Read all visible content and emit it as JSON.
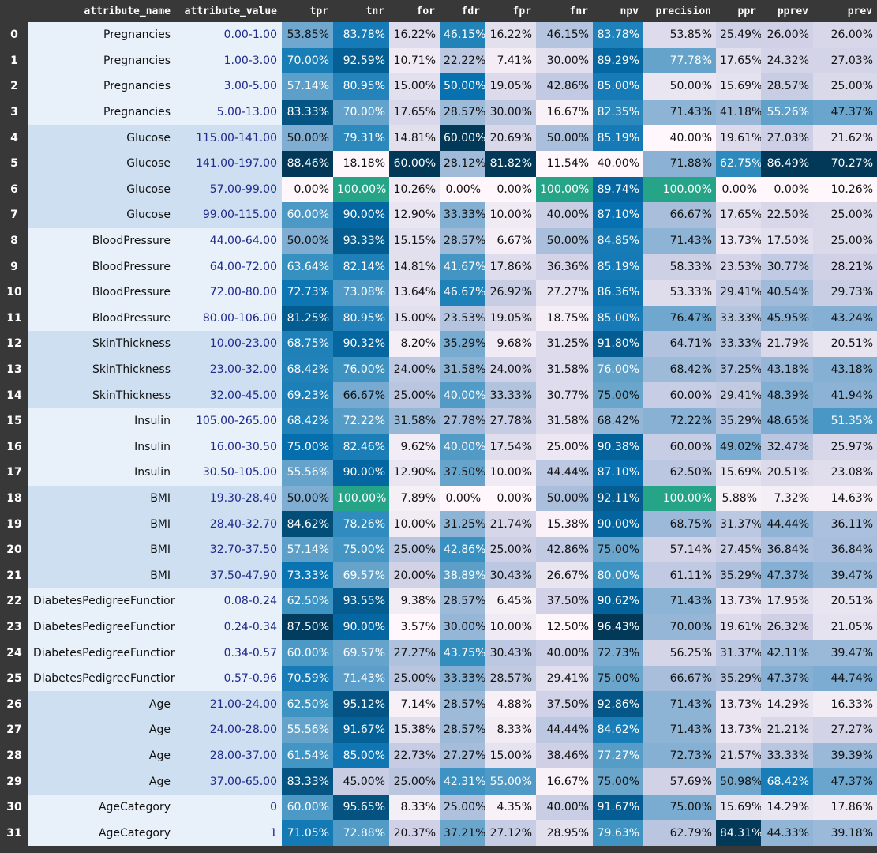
{
  "columns": [
    "attribute_name",
    "attribute_value",
    "tpr",
    "tnr",
    "for",
    "fdr",
    "fpr",
    "fnr",
    "npv",
    "precision",
    "ppr",
    "pprev",
    "prev"
  ],
  "metric_columns": [
    "tpr",
    "tnr",
    "for",
    "fdr",
    "fpr",
    "fnr",
    "npv",
    "precision",
    "ppr",
    "pprev",
    "prev"
  ],
  "colors": {
    "page_background": "#383838",
    "header_text": "#ffffff",
    "index_text": "#ffffff",
    "heatmap_low": "#fff7fb",
    "heatmap_high": "#023858",
    "max_highlight": "#26a487",
    "group_shades": [
      "#e8f1fa",
      "#cddff0",
      "#e8f1fa",
      "#cddff0",
      "#e8f1fa",
      "#cddff0",
      "#e8f1fa",
      "#cddff0",
      "#e8f1fa"
    ],
    "attribute_value_text": "#1f2a8a"
  },
  "rows": [
    {
      "index": "0",
      "attribute_name": "Pregnancies",
      "attribute_value": "0.00-1.00",
      "tpr": "53.85%",
      "tnr": "83.78%",
      "for": "16.22%",
      "fdr": "46.15%",
      "fpr": "16.22%",
      "fnr": "46.15%",
      "npv": "83.78%",
      "precision": "53.85%",
      "ppr": "25.49%",
      "pprev": "26.00%",
      "prev": "26.00%"
    },
    {
      "index": "1",
      "attribute_name": "Pregnancies",
      "attribute_value": "1.00-3.00",
      "tpr": "70.00%",
      "tnr": "92.59%",
      "for": "10.71%",
      "fdr": "22.22%",
      "fpr": "7.41%",
      "fnr": "30.00%",
      "npv": "89.29%",
      "precision": "77.78%",
      "ppr": "17.65%",
      "pprev": "24.32%",
      "prev": "27.03%"
    },
    {
      "index": "2",
      "attribute_name": "Pregnancies",
      "attribute_value": "3.00-5.00",
      "tpr": "57.14%",
      "tnr": "80.95%",
      "for": "15.00%",
      "fdr": "50.00%",
      "fpr": "19.05%",
      "fnr": "42.86%",
      "npv": "85.00%",
      "precision": "50.00%",
      "ppr": "15.69%",
      "pprev": "28.57%",
      "prev": "25.00%"
    },
    {
      "index": "3",
      "attribute_name": "Pregnancies",
      "attribute_value": "5.00-13.00",
      "tpr": "83.33%",
      "tnr": "70.00%",
      "for": "17.65%",
      "fdr": "28.57%",
      "fpr": "30.00%",
      "fnr": "16.67%",
      "npv": "82.35%",
      "precision": "71.43%",
      "ppr": "41.18%",
      "pprev": "55.26%",
      "prev": "47.37%"
    },
    {
      "index": "4",
      "attribute_name": "Glucose",
      "attribute_value": "115.00-141.00",
      "tpr": "50.00%",
      "tnr": "79.31%",
      "for": "14.81%",
      "fdr": "60.00%",
      "fpr": "20.69%",
      "fnr": "50.00%",
      "npv": "85.19%",
      "precision": "40.00%",
      "ppr": "19.61%",
      "pprev": "27.03%",
      "prev": "21.62%"
    },
    {
      "index": "5",
      "attribute_name": "Glucose",
      "attribute_value": "141.00-197.00",
      "tpr": "88.46%",
      "tnr": "18.18%",
      "for": "60.00%",
      "fdr": "28.12%",
      "fpr": "81.82%",
      "fnr": "11.54%",
      "npv": "40.00%",
      "precision": "71.88%",
      "ppr": "62.75%",
      "pprev": "86.49%",
      "prev": "70.27%"
    },
    {
      "index": "6",
      "attribute_name": "Glucose",
      "attribute_value": "57.00-99.00",
      "tpr": "0.00%",
      "tnr": "100.00%",
      "for": "10.26%",
      "fdr": "0.00%",
      "fpr": "0.00%",
      "fnr": "100.00%",
      "npv": "89.74%",
      "precision": "100.00%",
      "ppr": "0.00%",
      "pprev": "0.00%",
      "prev": "10.26%"
    },
    {
      "index": "7",
      "attribute_name": "Glucose",
      "attribute_value": "99.00-115.00",
      "tpr": "60.00%",
      "tnr": "90.00%",
      "for": "12.90%",
      "fdr": "33.33%",
      "fpr": "10.00%",
      "fnr": "40.00%",
      "npv": "87.10%",
      "precision": "66.67%",
      "ppr": "17.65%",
      "pprev": "22.50%",
      "prev": "25.00%"
    },
    {
      "index": "8",
      "attribute_name": "BloodPressure",
      "attribute_value": "44.00-64.00",
      "tpr": "50.00%",
      "tnr": "93.33%",
      "for": "15.15%",
      "fdr": "28.57%",
      "fpr": "6.67%",
      "fnr": "50.00%",
      "npv": "84.85%",
      "precision": "71.43%",
      "ppr": "13.73%",
      "pprev": "17.50%",
      "prev": "25.00%"
    },
    {
      "index": "9",
      "attribute_name": "BloodPressure",
      "attribute_value": "64.00-72.00",
      "tpr": "63.64%",
      "tnr": "82.14%",
      "for": "14.81%",
      "fdr": "41.67%",
      "fpr": "17.86%",
      "fnr": "36.36%",
      "npv": "85.19%",
      "precision": "58.33%",
      "ppr": "23.53%",
      "pprev": "30.77%",
      "prev": "28.21%"
    },
    {
      "index": "10",
      "attribute_name": "BloodPressure",
      "attribute_value": "72.00-80.00",
      "tpr": "72.73%",
      "tnr": "73.08%",
      "for": "13.64%",
      "fdr": "46.67%",
      "fpr": "26.92%",
      "fnr": "27.27%",
      "npv": "86.36%",
      "precision": "53.33%",
      "ppr": "29.41%",
      "pprev": "40.54%",
      "prev": "29.73%"
    },
    {
      "index": "11",
      "attribute_name": "BloodPressure",
      "attribute_value": "80.00-106.00",
      "tpr": "81.25%",
      "tnr": "80.95%",
      "for": "15.00%",
      "fdr": "23.53%",
      "fpr": "19.05%",
      "fnr": "18.75%",
      "npv": "85.00%",
      "precision": "76.47%",
      "ppr": "33.33%",
      "pprev": "45.95%",
      "prev": "43.24%"
    },
    {
      "index": "12",
      "attribute_name": "SkinThickness",
      "attribute_value": "10.00-23.00",
      "tpr": "68.75%",
      "tnr": "90.32%",
      "for": "8.20%",
      "fdr": "35.29%",
      "fpr": "9.68%",
      "fnr": "31.25%",
      "npv": "91.80%",
      "precision": "64.71%",
      "ppr": "33.33%",
      "pprev": "21.79%",
      "prev": "20.51%"
    },
    {
      "index": "13",
      "attribute_name": "SkinThickness",
      "attribute_value": "23.00-32.00",
      "tpr": "68.42%",
      "tnr": "76.00%",
      "for": "24.00%",
      "fdr": "31.58%",
      "fpr": "24.00%",
      "fnr": "31.58%",
      "npv": "76.00%",
      "precision": "68.42%",
      "ppr": "37.25%",
      "pprev": "43.18%",
      "prev": "43.18%"
    },
    {
      "index": "14",
      "attribute_name": "SkinThickness",
      "attribute_value": "32.00-45.00",
      "tpr": "69.23%",
      "tnr": "66.67%",
      "for": "25.00%",
      "fdr": "40.00%",
      "fpr": "33.33%",
      "fnr": "30.77%",
      "npv": "75.00%",
      "precision": "60.00%",
      "ppr": "29.41%",
      "pprev": "48.39%",
      "prev": "41.94%"
    },
    {
      "index": "15",
      "attribute_name": "Insulin",
      "attribute_value": "105.00-265.00",
      "tpr": "68.42%",
      "tnr": "72.22%",
      "for": "31.58%",
      "fdr": "27.78%",
      "fpr": "27.78%",
      "fnr": "31.58%",
      "npv": "68.42%",
      "precision": "72.22%",
      "ppr": "35.29%",
      "pprev": "48.65%",
      "prev": "51.35%"
    },
    {
      "index": "16",
      "attribute_name": "Insulin",
      "attribute_value": "16.00-30.50",
      "tpr": "75.00%",
      "tnr": "82.46%",
      "for": "9.62%",
      "fdr": "40.00%",
      "fpr": "17.54%",
      "fnr": "25.00%",
      "npv": "90.38%",
      "precision": "60.00%",
      "ppr": "49.02%",
      "pprev": "32.47%",
      "prev": "25.97%"
    },
    {
      "index": "17",
      "attribute_name": "Insulin",
      "attribute_value": "30.50-105.00",
      "tpr": "55.56%",
      "tnr": "90.00%",
      "for": "12.90%",
      "fdr": "37.50%",
      "fpr": "10.00%",
      "fnr": "44.44%",
      "npv": "87.10%",
      "precision": "62.50%",
      "ppr": "15.69%",
      "pprev": "20.51%",
      "prev": "23.08%"
    },
    {
      "index": "18",
      "attribute_name": "BMI",
      "attribute_value": "19.30-28.40",
      "tpr": "50.00%",
      "tnr": "100.00%",
      "for": "7.89%",
      "fdr": "0.00%",
      "fpr": "0.00%",
      "fnr": "50.00%",
      "npv": "92.11%",
      "precision": "100.00%",
      "ppr": "5.88%",
      "pprev": "7.32%",
      "prev": "14.63%"
    },
    {
      "index": "19",
      "attribute_name": "BMI",
      "attribute_value": "28.40-32.70",
      "tpr": "84.62%",
      "tnr": "78.26%",
      "for": "10.00%",
      "fdr": "31.25%",
      "fpr": "21.74%",
      "fnr": "15.38%",
      "npv": "90.00%",
      "precision": "68.75%",
      "ppr": "31.37%",
      "pprev": "44.44%",
      "prev": "36.11%"
    },
    {
      "index": "20",
      "attribute_name": "BMI",
      "attribute_value": "32.70-37.50",
      "tpr": "57.14%",
      "tnr": "75.00%",
      "for": "25.00%",
      "fdr": "42.86%",
      "fpr": "25.00%",
      "fnr": "42.86%",
      "npv": "75.00%",
      "precision": "57.14%",
      "ppr": "27.45%",
      "pprev": "36.84%",
      "prev": "36.84%"
    },
    {
      "index": "21",
      "attribute_name": "BMI",
      "attribute_value": "37.50-47.90",
      "tpr": "73.33%",
      "tnr": "69.57%",
      "for": "20.00%",
      "fdr": "38.89%",
      "fpr": "30.43%",
      "fnr": "26.67%",
      "npv": "80.00%",
      "precision": "61.11%",
      "ppr": "35.29%",
      "pprev": "47.37%",
      "prev": "39.47%"
    },
    {
      "index": "22",
      "attribute_name": "DiabetesPedigreeFunction",
      "attribute_value": "0.08-0.24",
      "tpr": "62.50%",
      "tnr": "93.55%",
      "for": "9.38%",
      "fdr": "28.57%",
      "fpr": "6.45%",
      "fnr": "37.50%",
      "npv": "90.62%",
      "precision": "71.43%",
      "ppr": "13.73%",
      "pprev": "17.95%",
      "prev": "20.51%"
    },
    {
      "index": "23",
      "attribute_name": "DiabetesPedigreeFunction",
      "attribute_value": "0.24-0.34",
      "tpr": "87.50%",
      "tnr": "90.00%",
      "for": "3.57%",
      "fdr": "30.00%",
      "fpr": "10.00%",
      "fnr": "12.50%",
      "npv": "96.43%",
      "precision": "70.00%",
      "ppr": "19.61%",
      "pprev": "26.32%",
      "prev": "21.05%"
    },
    {
      "index": "24",
      "attribute_name": "DiabetesPedigreeFunction",
      "attribute_value": "0.34-0.57",
      "tpr": "60.00%",
      "tnr": "69.57%",
      "for": "27.27%",
      "fdr": "43.75%",
      "fpr": "30.43%",
      "fnr": "40.00%",
      "npv": "72.73%",
      "precision": "56.25%",
      "ppr": "31.37%",
      "pprev": "42.11%",
      "prev": "39.47%"
    },
    {
      "index": "25",
      "attribute_name": "DiabetesPedigreeFunction",
      "attribute_value": "0.57-0.96",
      "tpr": "70.59%",
      "tnr": "71.43%",
      "for": "25.00%",
      "fdr": "33.33%",
      "fpr": "28.57%",
      "fnr": "29.41%",
      "npv": "75.00%",
      "precision": "66.67%",
      "ppr": "35.29%",
      "pprev": "47.37%",
      "prev": "44.74%"
    },
    {
      "index": "26",
      "attribute_name": "Age",
      "attribute_value": "21.00-24.00",
      "tpr": "62.50%",
      "tnr": "95.12%",
      "for": "7.14%",
      "fdr": "28.57%",
      "fpr": "4.88%",
      "fnr": "37.50%",
      "npv": "92.86%",
      "precision": "71.43%",
      "ppr": "13.73%",
      "pprev": "14.29%",
      "prev": "16.33%"
    },
    {
      "index": "27",
      "attribute_name": "Age",
      "attribute_value": "24.00-28.00",
      "tpr": "55.56%",
      "tnr": "91.67%",
      "for": "15.38%",
      "fdr": "28.57%",
      "fpr": "8.33%",
      "fnr": "44.44%",
      "npv": "84.62%",
      "precision": "71.43%",
      "ppr": "13.73%",
      "pprev": "21.21%",
      "prev": "27.27%"
    },
    {
      "index": "28",
      "attribute_name": "Age",
      "attribute_value": "28.00-37.00",
      "tpr": "61.54%",
      "tnr": "85.00%",
      "for": "22.73%",
      "fdr": "27.27%",
      "fpr": "15.00%",
      "fnr": "38.46%",
      "npv": "77.27%",
      "precision": "72.73%",
      "ppr": "21.57%",
      "pprev": "33.33%",
      "prev": "39.39%"
    },
    {
      "index": "29",
      "attribute_name": "Age",
      "attribute_value": "37.00-65.00",
      "tpr": "83.33%",
      "tnr": "45.00%",
      "for": "25.00%",
      "fdr": "42.31%",
      "fpr": "55.00%",
      "fnr": "16.67%",
      "npv": "75.00%",
      "precision": "57.69%",
      "ppr": "50.98%",
      "pprev": "68.42%",
      "prev": "47.37%"
    },
    {
      "index": "30",
      "attribute_name": "AgeCategory",
      "attribute_value": "0",
      "tpr": "60.00%",
      "tnr": "95.65%",
      "for": "8.33%",
      "fdr": "25.00%",
      "fpr": "4.35%",
      "fnr": "40.00%",
      "npv": "91.67%",
      "precision": "75.00%",
      "ppr": "15.69%",
      "pprev": "14.29%",
      "prev": "17.86%"
    },
    {
      "index": "31",
      "attribute_name": "AgeCategory",
      "attribute_value": "1",
      "tpr": "71.05%",
      "tnr": "72.88%",
      "for": "20.37%",
      "fdr": "37.21%",
      "fpr": "27.12%",
      "fnr": "28.95%",
      "npv": "79.63%",
      "precision": "62.79%",
      "ppr": "84.31%",
      "pprev": "44.33%",
      "prev": "39.18%"
    }
  ]
}
